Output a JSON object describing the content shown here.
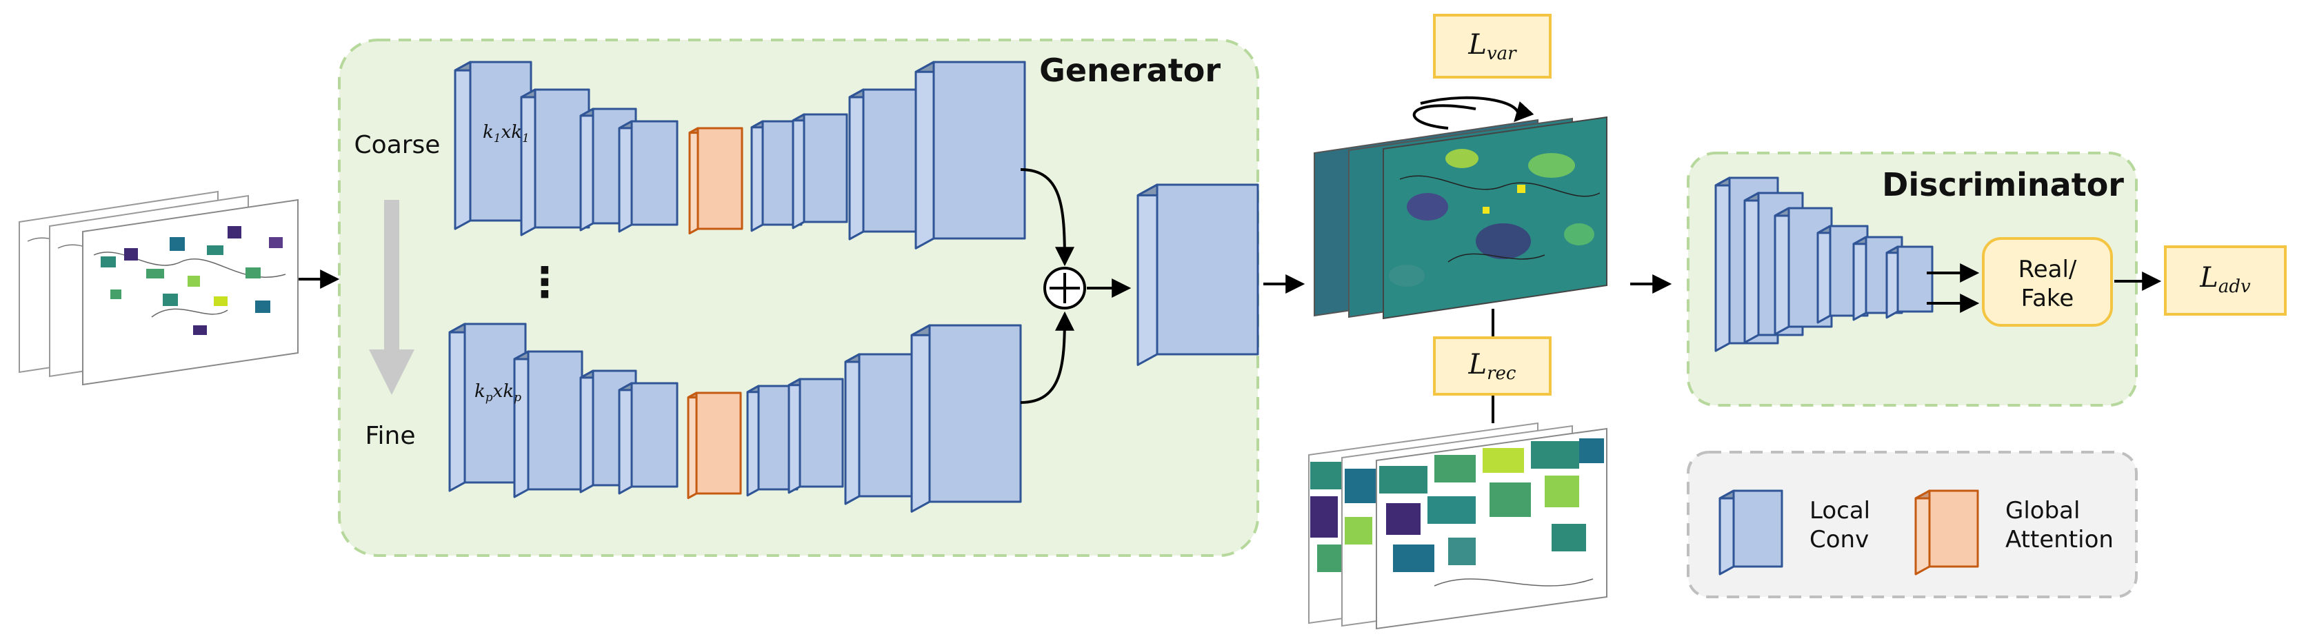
{
  "generator": {
    "title": "Generator",
    "scale_top_label": "Coarse",
    "scale_bottom_label": "Fine",
    "ellipsis": "⋮",
    "top_kernel": {
      "k": "k",
      "sub": "1",
      "x": "x"
    },
    "bottom_kernel": {
      "k": "k",
      "sub": "p",
      "x": "x"
    }
  },
  "losses": {
    "var": {
      "base": "L",
      "sub": "var"
    },
    "rec": {
      "base": "L",
      "sub": "rec"
    },
    "adv": {
      "base": "L",
      "sub": "adv"
    }
  },
  "discriminator": {
    "title": "Discriminator",
    "output_line1": "Real/",
    "output_line2": "Fake"
  },
  "legend": {
    "local_line1": "Local",
    "local_line2": "Conv",
    "global_line1": "Global",
    "global_line2": "Attention"
  },
  "colors": {
    "panel_fill": "#eaf3e0",
    "panel_border": "#b7d89c",
    "conv_front": "#b4c7e7",
    "conv_side": "#c5d4ee",
    "conv_top": "#8497b0",
    "conv_stroke": "#2f5597",
    "attn_front": "#f8cbad",
    "attn_side": "#f9d8c2",
    "attn_top": "#c9977a",
    "attn_stroke": "#c55a11",
    "loss_fill": "#fff2cc",
    "loss_border": "#f4c542",
    "legend_fill": "#f2f2f2",
    "legend_border": "#bfbfbf"
  }
}
